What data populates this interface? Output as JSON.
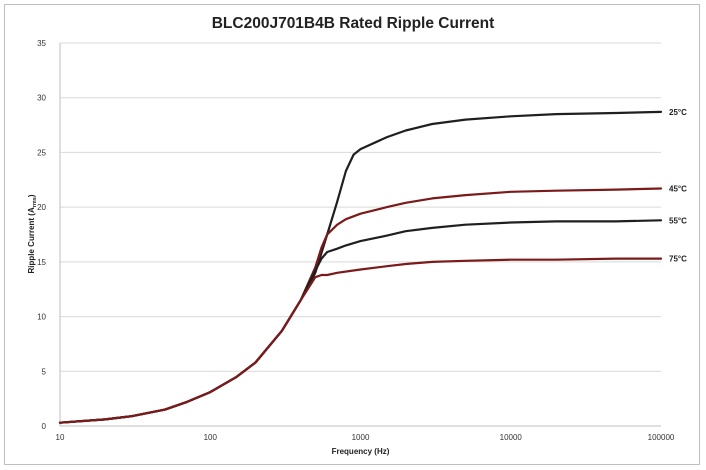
{
  "chart_data": {
    "type": "line",
    "title": "BLC200J701B4B Rated Ripple Current",
    "xlabel": "Frequency (Hz)",
    "ylabel_main": "Ripple Current (A",
    "ylabel_sub": "rms",
    "ylabel_end": ")",
    "xscale": "log",
    "xlim": [
      10,
      100000
    ],
    "ylim": [
      0,
      35
    ],
    "x_ticks": [
      10,
      100,
      1000,
      10000,
      100000
    ],
    "x_tick_labels": [
      "10",
      "100",
      "1000",
      "10000",
      "100000"
    ],
    "y_ticks": [
      0,
      5,
      10,
      15,
      20,
      25,
      30,
      35
    ],
    "y_tick_labels": [
      "0",
      "5",
      "10",
      "15",
      "20",
      "25",
      "30",
      "35"
    ],
    "grid": "horizontal",
    "legend": "labels at right end of each series",
    "series": [
      {
        "name": "25°C",
        "color": "#1f1f1f",
        "x": [
          10,
          20,
          30,
          50,
          70,
          100,
          150,
          200,
          300,
          400,
          500,
          600,
          700,
          800,
          900,
          1000,
          1500,
          2000,
          3000,
          5000,
          10000,
          20000,
          50000,
          100000
        ],
        "y": [
          0.3,
          0.6,
          0.9,
          1.5,
          2.2,
          3.1,
          4.5,
          5.8,
          8.7,
          11.5,
          14.0,
          17.5,
          20.5,
          23.3,
          24.8,
          25.3,
          26.4,
          27.0,
          27.6,
          28.0,
          28.3,
          28.5,
          28.6,
          28.7
        ]
      },
      {
        "name": "45°C",
        "color": "#7b1a1a",
        "x": [
          10,
          20,
          30,
          50,
          70,
          100,
          150,
          200,
          300,
          400,
          500,
          550,
          600,
          700,
          800,
          1000,
          1500,
          2000,
          3000,
          5000,
          10000,
          20000,
          50000,
          100000
        ],
        "y": [
          0.3,
          0.6,
          0.9,
          1.5,
          2.2,
          3.1,
          4.5,
          5.8,
          8.7,
          11.5,
          14.5,
          16.3,
          17.5,
          18.4,
          18.9,
          19.4,
          20.0,
          20.4,
          20.8,
          21.1,
          21.4,
          21.5,
          21.6,
          21.7
        ]
      },
      {
        "name": "55°C",
        "color": "#1f1f1f",
        "x": [
          10,
          20,
          30,
          50,
          70,
          100,
          150,
          200,
          300,
          400,
          500,
          550,
          600,
          700,
          800,
          1000,
          1500,
          2000,
          3000,
          5000,
          10000,
          20000,
          50000,
          100000
        ],
        "y": [
          0.3,
          0.6,
          0.9,
          1.5,
          2.2,
          3.1,
          4.5,
          5.8,
          8.7,
          11.5,
          14.2,
          15.3,
          15.9,
          16.2,
          16.5,
          16.9,
          17.4,
          17.8,
          18.1,
          18.4,
          18.6,
          18.7,
          18.7,
          18.8
        ]
      },
      {
        "name": "75°C",
        "color": "#7b1a1a",
        "x": [
          10,
          20,
          30,
          50,
          70,
          100,
          150,
          200,
          300,
          400,
          500,
          550,
          600,
          700,
          1000,
          1500,
          2000,
          3000,
          5000,
          10000,
          20000,
          50000,
          100000
        ],
        "y": [
          0.3,
          0.6,
          0.9,
          1.5,
          2.2,
          3.1,
          4.5,
          5.8,
          8.7,
          11.5,
          13.6,
          13.8,
          13.8,
          14.0,
          14.3,
          14.6,
          14.8,
          15.0,
          15.1,
          15.2,
          15.2,
          15.3,
          15.3
        ]
      }
    ]
  }
}
